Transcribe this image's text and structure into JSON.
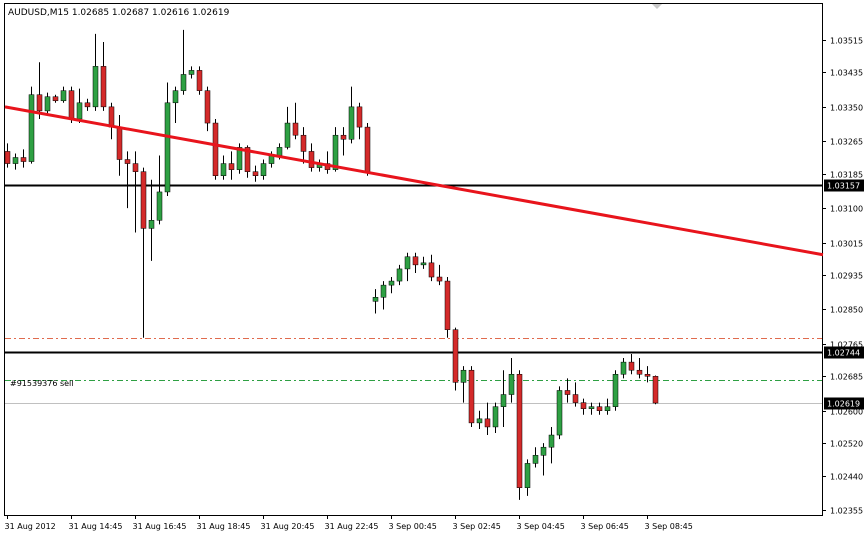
{
  "header": {
    "symbol_info": "AUDUSD,M15  1.02685 1.02687 1.02616 1.02619"
  },
  "order_label": "#91539376 sell",
  "colors": {
    "background": "#ffffff",
    "border": "#000000",
    "bull": "#2ea043",
    "bear": "#d42a2a",
    "trendline": "#e8141c",
    "level": "#000000",
    "stop_dashdot": "#e06b4e",
    "order_dashdot": "#2ea043",
    "bid_line": "#c0c0c0"
  },
  "chart_data": {
    "type": "candlestick",
    "symbol": "AUDUSD",
    "timeframe": "M15",
    "ohlc_header": {
      "open": 1.02685,
      "high": 1.02687,
      "low": 1.02616,
      "close": 1.02619
    },
    "ylim": [
      1.02355,
      1.0356
    ],
    "y_ticks": [
      "1.03515",
      "1.03435",
      "1.03350",
      "1.03265",
      "1.03185",
      "1.03100",
      "1.03015",
      "1.02935",
      "1.02850",
      "1.02765",
      "1.02685",
      "1.02600",
      "1.02520",
      "1.02440",
      "1.02355"
    ],
    "x_ticks": [
      {
        "index": 0,
        "label": "31 Aug 2012"
      },
      {
        "index": 8,
        "label": "31 Aug 14:45"
      },
      {
        "index": 16,
        "label": "31 Aug 16:45"
      },
      {
        "index": 24,
        "label": "31 Aug 18:45"
      },
      {
        "index": 32,
        "label": "31 Aug 20:45"
      },
      {
        "index": 40,
        "label": "31 Aug 22:45"
      },
      {
        "index": 48,
        "label": "3 Sep 00:45"
      },
      {
        "index": 56,
        "label": "3 Sep 02:45"
      },
      {
        "index": 64,
        "label": "3 Sep 04:45"
      },
      {
        "index": 72,
        "label": "3 Sep 06:45"
      },
      {
        "index": 80,
        "label": "3 Sep 08:45"
      }
    ],
    "levels": [
      {
        "kind": "horizontal",
        "price": 1.03157,
        "label": "1.03157"
      },
      {
        "kind": "horizontal",
        "price": 1.02744,
        "label": "1.02744"
      },
      {
        "kind": "bid",
        "price": 1.02619,
        "label": "1.02619"
      },
      {
        "kind": "dashdot-red",
        "price": 1.0278
      },
      {
        "kind": "dashdot-green",
        "price": 1.02675
      }
    ],
    "trendline": {
      "from": {
        "index": 0,
        "price": 1.0335
      },
      "to": {
        "index": 102,
        "price": 1.02985
      }
    },
    "candles": [
      {
        "o": 1.0324,
        "h": 1.0326,
        "l": 1.032,
        "c": 1.0321
      },
      {
        "o": 1.0321,
        "h": 1.03235,
        "l": 1.03195,
        "c": 1.03225
      },
      {
        "o": 1.03225,
        "h": 1.03245,
        "l": 1.032,
        "c": 1.03215
      },
      {
        "o": 1.03215,
        "h": 1.034,
        "l": 1.0321,
        "c": 1.0338
      },
      {
        "o": 1.0338,
        "h": 1.0346,
        "l": 1.0332,
        "c": 1.0334
      },
      {
        "o": 1.0334,
        "h": 1.03385,
        "l": 1.0333,
        "c": 1.03375
      },
      {
        "o": 1.03375,
        "h": 1.0338,
        "l": 1.0336,
        "c": 1.03365
      },
      {
        "o": 1.03365,
        "h": 1.034,
        "l": 1.0336,
        "c": 1.0339
      },
      {
        "o": 1.0339,
        "h": 1.034,
        "l": 1.0331,
        "c": 1.0332
      },
      {
        "o": 1.0332,
        "h": 1.03395,
        "l": 1.0331,
        "c": 1.0336
      },
      {
        "o": 1.0336,
        "h": 1.0337,
        "l": 1.0334,
        "c": 1.0335
      },
      {
        "o": 1.0335,
        "h": 1.0353,
        "l": 1.0334,
        "c": 1.0345
      },
      {
        "o": 1.0345,
        "h": 1.0351,
        "l": 1.0334,
        "c": 1.0335
      },
      {
        "o": 1.0335,
        "h": 1.0336,
        "l": 1.0327,
        "c": 1.033
      },
      {
        "o": 1.033,
        "h": 1.0333,
        "l": 1.0318,
        "c": 1.0322
      },
      {
        "o": 1.0322,
        "h": 1.0324,
        "l": 1.031,
        "c": 1.0321
      },
      {
        "o": 1.0321,
        "h": 1.0324,
        "l": 1.0304,
        "c": 1.0319
      },
      {
        "o": 1.0319,
        "h": 1.032,
        "l": 1.0278,
        "c": 1.0305
      },
      {
        "o": 1.0305,
        "h": 1.0317,
        "l": 1.0297,
        "c": 1.0307
      },
      {
        "o": 1.0307,
        "h": 1.0323,
        "l": 1.0306,
        "c": 1.0314
      },
      {
        "o": 1.0314,
        "h": 1.0341,
        "l": 1.0313,
        "c": 1.0336
      },
      {
        "o": 1.0336,
        "h": 1.034,
        "l": 1.0331,
        "c": 1.0339
      },
      {
        "o": 1.0339,
        "h": 1.0354,
        "l": 1.0338,
        "c": 1.0343
      },
      {
        "o": 1.0343,
        "h": 1.0345,
        "l": 1.0342,
        "c": 1.0344
      },
      {
        "o": 1.0344,
        "h": 1.0345,
        "l": 1.0338,
        "c": 1.0339
      },
      {
        "o": 1.0339,
        "h": 1.034,
        "l": 1.0329,
        "c": 1.0331
      },
      {
        "o": 1.0331,
        "h": 1.0332,
        "l": 1.0317,
        "c": 1.0318
      },
      {
        "o": 1.0318,
        "h": 1.0323,
        "l": 1.0317,
        "c": 1.0321
      },
      {
        "o": 1.0321,
        "h": 1.0324,
        "l": 1.0317,
        "c": 1.03195
      },
      {
        "o": 1.03195,
        "h": 1.0326,
        "l": 1.03185,
        "c": 1.0325
      },
      {
        "o": 1.0325,
        "h": 1.03255,
        "l": 1.03175,
        "c": 1.0319
      },
      {
        "o": 1.0319,
        "h": 1.03205,
        "l": 1.03165,
        "c": 1.0318
      },
      {
        "o": 1.0318,
        "h": 1.0322,
        "l": 1.0317,
        "c": 1.0321
      },
      {
        "o": 1.0321,
        "h": 1.0324,
        "l": 1.032,
        "c": 1.0323
      },
      {
        "o": 1.0323,
        "h": 1.0326,
        "l": 1.0322,
        "c": 1.0325
      },
      {
        "o": 1.0325,
        "h": 1.0335,
        "l": 1.03245,
        "c": 1.0331
      },
      {
        "o": 1.0331,
        "h": 1.0336,
        "l": 1.0327,
        "c": 1.0328
      },
      {
        "o": 1.0328,
        "h": 1.033,
        "l": 1.0321,
        "c": 1.0324
      },
      {
        "o": 1.0324,
        "h": 1.0326,
        "l": 1.0319,
        "c": 1.032
      },
      {
        "o": 1.032,
        "h": 1.0322,
        "l": 1.0319,
        "c": 1.0321
      },
      {
        "o": 1.0321,
        "h": 1.0324,
        "l": 1.03185,
        "c": 1.03195
      },
      {
        "o": 1.03195,
        "h": 1.033,
        "l": 1.0319,
        "c": 1.0328
      },
      {
        "o": 1.0328,
        "h": 1.033,
        "l": 1.0323,
        "c": 1.0327
      },
      {
        "o": 1.0327,
        "h": 1.034,
        "l": 1.0326,
        "c": 1.0335
      },
      {
        "o": 1.0335,
        "h": 1.0336,
        "l": 1.0327,
        "c": 1.033
      },
      {
        "o": 1.033,
        "h": 1.0331,
        "l": 1.0318,
        "c": 1.0319
      },
      {
        "o": 1.0287,
        "h": 1.029,
        "l": 1.0284,
        "c": 1.0288
      },
      {
        "o": 1.0288,
        "h": 1.0292,
        "l": 1.0285,
        "c": 1.0291
      },
      {
        "o": 1.0291,
        "h": 1.0293,
        "l": 1.0289,
        "c": 1.0292
      },
      {
        "o": 1.0292,
        "h": 1.0296,
        "l": 1.0291,
        "c": 1.0295
      },
      {
        "o": 1.0295,
        "h": 1.0299,
        "l": 1.0292,
        "c": 1.0298
      },
      {
        "o": 1.0298,
        "h": 1.0299,
        "l": 1.0294,
        "c": 1.0296
      },
      {
        "o": 1.0296,
        "h": 1.0298,
        "l": 1.0295,
        "c": 1.02965
      },
      {
        "o": 1.02965,
        "h": 1.02985,
        "l": 1.0292,
        "c": 1.0293
      },
      {
        "o": 1.0293,
        "h": 1.0296,
        "l": 1.0291,
        "c": 1.0292
      },
      {
        "o": 1.0292,
        "h": 1.0293,
        "l": 1.0278,
        "c": 1.028
      },
      {
        "o": 1.028,
        "h": 1.02805,
        "l": 1.0265,
        "c": 1.0267
      },
      {
        "o": 1.0267,
        "h": 1.0271,
        "l": 1.0262,
        "c": 1.027
      },
      {
        "o": 1.027,
        "h": 1.0271,
        "l": 1.0256,
        "c": 1.0257
      },
      {
        "o": 1.0257,
        "h": 1.026,
        "l": 1.02555,
        "c": 1.0258
      },
      {
        "o": 1.0258,
        "h": 1.0262,
        "l": 1.0254,
        "c": 1.0256
      },
      {
        "o": 1.0256,
        "h": 1.0262,
        "l": 1.02545,
        "c": 1.0261
      },
      {
        "o": 1.0261,
        "h": 1.027,
        "l": 1.0256,
        "c": 1.0264
      },
      {
        "o": 1.0264,
        "h": 1.0273,
        "l": 1.0262,
        "c": 1.0269
      },
      {
        "o": 1.0269,
        "h": 1.027,
        "l": 1.0238,
        "c": 1.0241
      },
      {
        "o": 1.0241,
        "h": 1.0248,
        "l": 1.0239,
        "c": 1.0247
      },
      {
        "o": 1.0247,
        "h": 1.0251,
        "l": 1.0246,
        "c": 1.0249
      },
      {
        "o": 1.0249,
        "h": 1.0252,
        "l": 1.0244,
        "c": 1.0251
      },
      {
        "o": 1.0251,
        "h": 1.0256,
        "l": 1.0247,
        "c": 1.0254
      },
      {
        "o": 1.0254,
        "h": 1.0266,
        "l": 1.0253,
        "c": 1.0265
      },
      {
        "o": 1.0265,
        "h": 1.0268,
        "l": 1.0262,
        "c": 1.0264
      },
      {
        "o": 1.0264,
        "h": 1.0267,
        "l": 1.0261,
        "c": 1.0262
      },
      {
        "o": 1.0262,
        "h": 1.0263,
        "l": 1.0259,
        "c": 1.02605
      },
      {
        "o": 1.02605,
        "h": 1.0262,
        "l": 1.0259,
        "c": 1.0261
      },
      {
        "o": 1.0261,
        "h": 1.0262,
        "l": 1.0259,
        "c": 1.026
      },
      {
        "o": 1.026,
        "h": 1.0263,
        "l": 1.0259,
        "c": 1.0261
      },
      {
        "o": 1.0261,
        "h": 1.027,
        "l": 1.026,
        "c": 1.0269
      },
      {
        "o": 1.0269,
        "h": 1.0273,
        "l": 1.0268,
        "c": 1.0272
      },
      {
        "o": 1.0272,
        "h": 1.0274,
        "l": 1.0269,
        "c": 1.027
      },
      {
        "o": 1.027,
        "h": 1.0273,
        "l": 1.0268,
        "c": 1.0269
      },
      {
        "o": 1.0269,
        "h": 1.0271,
        "l": 1.0267,
        "c": 1.02685
      },
      {
        "o": 1.02685,
        "h": 1.02687,
        "l": 1.02616,
        "c": 1.02619
      }
    ]
  }
}
